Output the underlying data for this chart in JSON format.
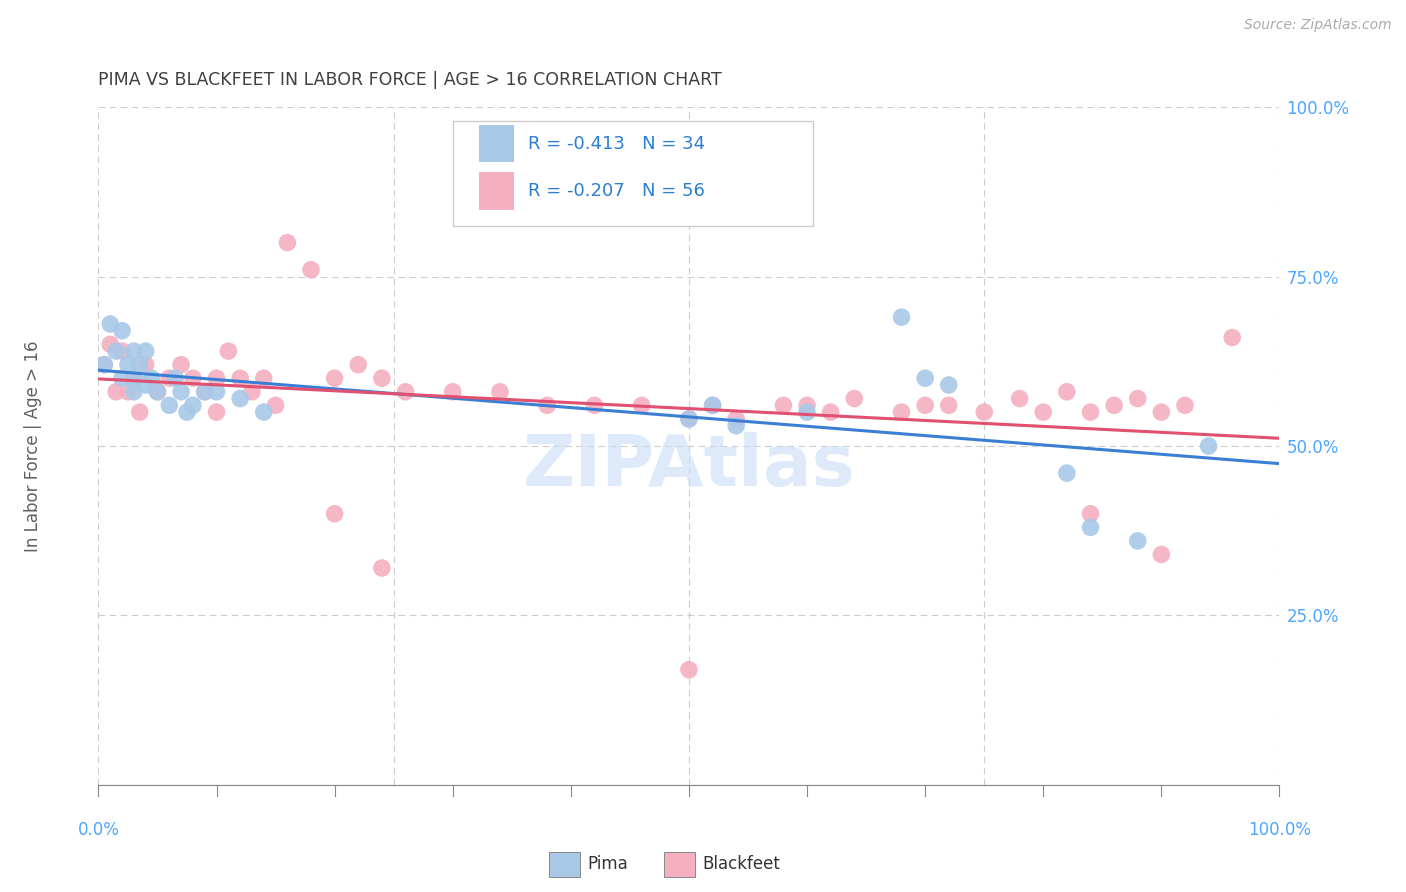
{
  "title": "PIMA VS BLACKFEET IN LABOR FORCE | AGE > 16 CORRELATION CHART",
  "source": "Source: ZipAtlas.com",
  "ylabel": "In Labor Force | Age > 16",
  "pima_color": "#a8c8e8",
  "blackfeet_color": "#f4b0c0",
  "pima_line_color": "#3a7fd4",
  "blackfeet_line_color": "#e05070",
  "pima_R": -0.413,
  "pima_N": 34,
  "blackfeet_R": -0.207,
  "blackfeet_N": 56,
  "xlim": [
    0.0,
    1.0
  ],
  "ylim": [
    0.0,
    1.0
  ],
  "background_color": "#ffffff",
  "grid_color": "#cccccc",
  "title_color": "#404040",
  "axis_label_color": "#606060",
  "tick_color": "#4da6ff",
  "legend_text_color": "#2a7fd4",
  "watermark_color": "#c8ddf5",
  "pima_x": [
    0.005,
    0.01,
    0.015,
    0.02,
    0.02,
    0.025,
    0.03,
    0.03,
    0.03,
    0.035,
    0.04,
    0.04,
    0.045,
    0.05,
    0.06,
    0.065,
    0.07,
    0.075,
    0.08,
    0.09,
    0.1,
    0.12,
    0.14,
    0.5,
    0.52,
    0.54,
    0.6,
    0.68,
    0.7,
    0.72,
    0.82,
    0.84,
    0.88,
    0.94
  ],
  "pima_y": [
    0.62,
    0.68,
    0.64,
    0.6,
    0.67,
    0.62,
    0.58,
    0.64,
    0.6,
    0.62,
    0.59,
    0.64,
    0.6,
    0.58,
    0.56,
    0.6,
    0.58,
    0.55,
    0.56,
    0.58,
    0.58,
    0.57,
    0.55,
    0.54,
    0.56,
    0.53,
    0.55,
    0.69,
    0.6,
    0.59,
    0.46,
    0.38,
    0.36,
    0.5
  ],
  "blackfeet_x": [
    0.005,
    0.01,
    0.015,
    0.02,
    0.025,
    0.03,
    0.035,
    0.04,
    0.05,
    0.06,
    0.07,
    0.08,
    0.09,
    0.1,
    0.1,
    0.11,
    0.12,
    0.13,
    0.14,
    0.15,
    0.16,
    0.18,
    0.2,
    0.22,
    0.24,
    0.26,
    0.3,
    0.34,
    0.38,
    0.42,
    0.46,
    0.5,
    0.52,
    0.54,
    0.58,
    0.6,
    0.62,
    0.64,
    0.68,
    0.7,
    0.72,
    0.75,
    0.78,
    0.8,
    0.82,
    0.84,
    0.86,
    0.88,
    0.9,
    0.92,
    0.2,
    0.24,
    0.5,
    0.84,
    0.9,
    0.96
  ],
  "blackfeet_y": [
    0.62,
    0.65,
    0.58,
    0.64,
    0.58,
    0.6,
    0.55,
    0.62,
    0.58,
    0.6,
    0.62,
    0.6,
    0.58,
    0.6,
    0.55,
    0.64,
    0.6,
    0.58,
    0.6,
    0.56,
    0.8,
    0.76,
    0.6,
    0.62,
    0.6,
    0.58,
    0.58,
    0.58,
    0.56,
    0.56,
    0.56,
    0.54,
    0.56,
    0.54,
    0.56,
    0.56,
    0.55,
    0.57,
    0.55,
    0.56,
    0.56,
    0.55,
    0.57,
    0.55,
    0.58,
    0.55,
    0.56,
    0.57,
    0.55,
    0.56,
    0.4,
    0.32,
    0.17,
    0.4,
    0.34,
    0.66
  ]
}
